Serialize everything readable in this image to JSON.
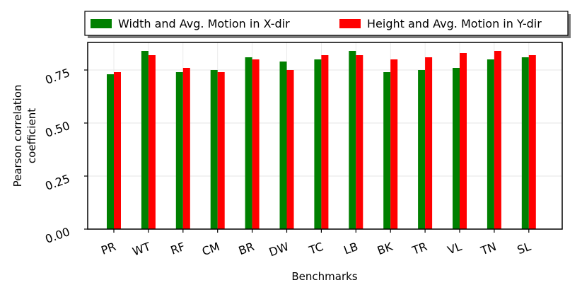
{
  "chart_data": {
    "type": "bar",
    "title": "",
    "xlabel": "Benchmarks",
    "ylabel_lines": [
      "Pearson correlation",
      "coefficient"
    ],
    "categories": [
      "PR",
      "WT",
      "RF",
      "CM",
      "BR",
      "DW",
      "TC",
      "LB",
      "BK",
      "TR",
      "VL",
      "TN",
      "SL"
    ],
    "series": [
      {
        "name": "Width and Avg. Motion in X-dir",
        "color": "#008000",
        "values": [
          0.73,
          0.84,
          0.74,
          0.75,
          0.81,
          0.79,
          0.8,
          0.84,
          0.74,
          0.75,
          0.76,
          0.8,
          0.81
        ]
      },
      {
        "name": "Height and Avg. Motion in Y-dir",
        "color": "#ff0000",
        "values": [
          0.74,
          0.82,
          0.76,
          0.74,
          0.8,
          0.75,
          0.82,
          0.82,
          0.8,
          0.81,
          0.83,
          0.84,
          0.82
        ]
      }
    ],
    "ylim": [
      0,
      0.88
    ],
    "yticks": [
      "0.00",
      "0.25",
      "0.50",
      "0.75"
    ],
    "grid": true,
    "legend_position": "top"
  }
}
